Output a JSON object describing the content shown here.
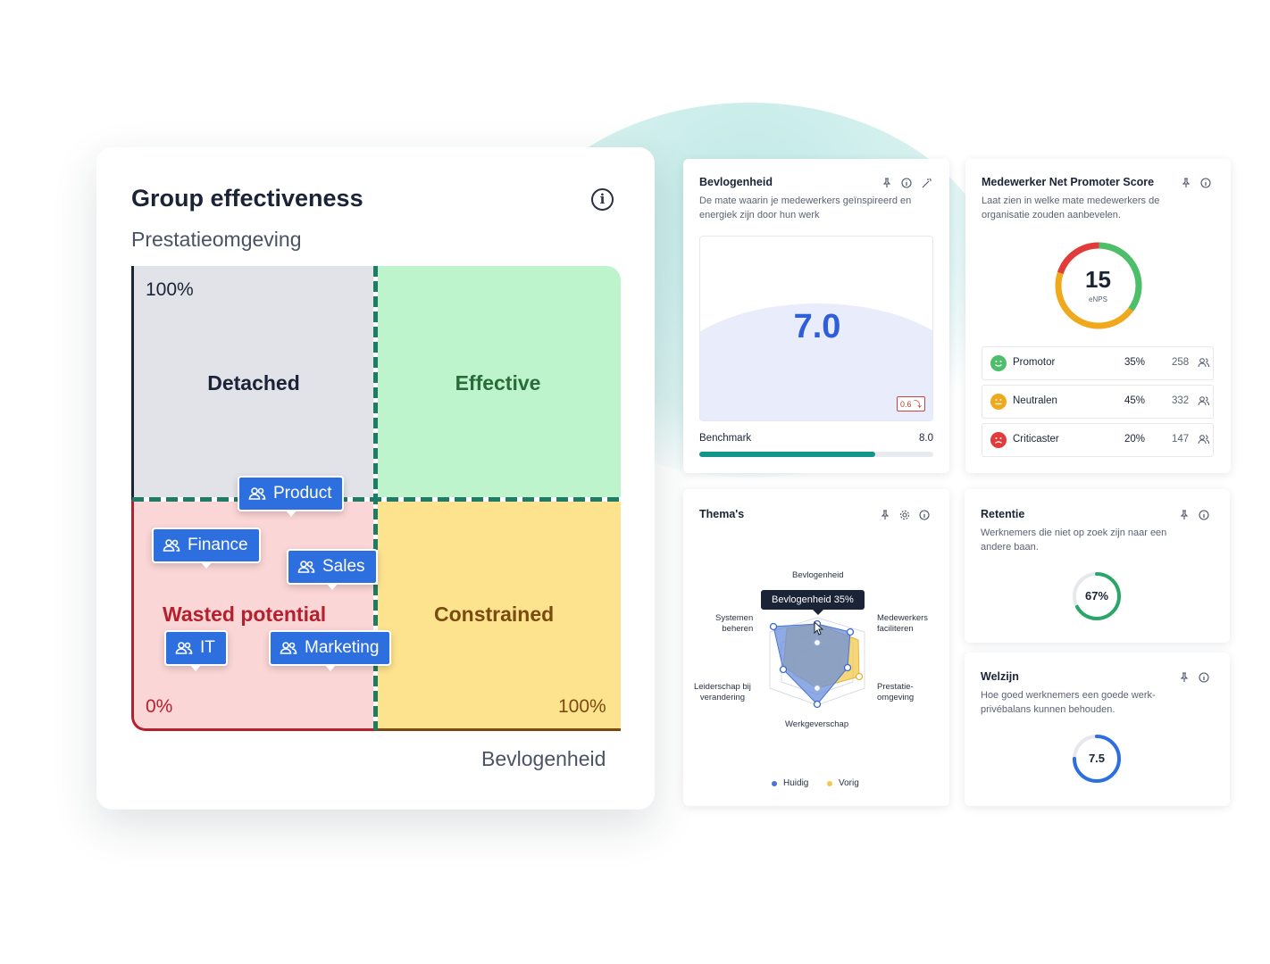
{
  "colors": {
    "accent": "#2e6fe0",
    "teal": "#14958a",
    "detached": "#e2e3e8",
    "effective": "#bdf4cc",
    "wasted": "#fbd6d6",
    "constrained": "#fde38e",
    "promotor": "#4cbf6b",
    "neutral": "#f0a81c",
    "detractor": "#e23b3b"
  },
  "group_effectiveness": {
    "title": "Group effectiveness",
    "y_axis_label": "Prestatieomgeving",
    "x_axis_label": "Bevlogenheid",
    "y_max_label": "100%",
    "origin_label": "0%",
    "x_max_label": "100%",
    "quadrants": {
      "top_left": "Detached",
      "top_right": "Effective",
      "bottom_left": "Wasted potential",
      "bottom_right": "Constrained"
    },
    "teams": [
      "Product",
      "Finance",
      "Sales",
      "IT",
      "Marketing"
    ]
  },
  "bevlogenheid": {
    "title": "Bevlogenheid",
    "description": "De mate waarin je medewerkers geïnspireerd en energiek zijn door hun werk",
    "value": "7.0",
    "delta": "0.6",
    "benchmark_label": "Benchmark",
    "benchmark_value": "8.0",
    "benchmark_progress": 0.75
  },
  "enps": {
    "title": "Medewerker Net Promoter Score",
    "description": "Laat zien in welke mate medewerkers de organisatie zouden aanbevelen.",
    "score": "15",
    "score_label": "eNPS",
    "rows": [
      {
        "label": "Promotor",
        "percent": "35%",
        "count": "258"
      },
      {
        "label": "Neutralen",
        "percent": "45%",
        "count": "332"
      },
      {
        "label": "Criticaster",
        "percent": "20%",
        "count": "147"
      }
    ]
  },
  "themas": {
    "title": "Thema's",
    "tooltip": "Bevlogenheid 35%",
    "axes": [
      "Bevlogenheid",
      "Medewerkers faciliteren",
      "Prestatie-omgeving",
      "Werkgeverschap",
      "Leiderschap bij verandering",
      "Systemen beheren"
    ],
    "axis_labels": {
      "bev": "Bevlogenheid",
      "med1": "Medewerkers",
      "med2": "faciliteren",
      "pre1": "Prestatie-",
      "pre2": "omgeving",
      "werk": "Werkgeverschap",
      "lei1": "Leiderschap bij",
      "lei2": "verandering",
      "sys1": "Systemen",
      "sys2": "beheren"
    },
    "legend": [
      "Huidig",
      "Vorig"
    ]
  },
  "retentie": {
    "title": "Retentie",
    "description": "Werknemers die niet op zoek zijn naar een andere baan.",
    "value": "67%",
    "fraction": 0.67
  },
  "welzijn": {
    "title": "Welzijn",
    "description": "Hoe goed werknemers een goede werk-privébalans kunnen behouden.",
    "value": "7.5",
    "fraction": 0.75
  }
}
